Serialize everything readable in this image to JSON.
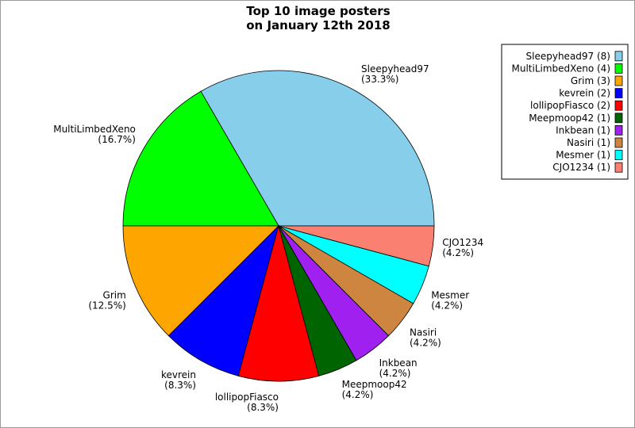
{
  "chart_data": {
    "type": "pie",
    "title_lines": [
      "Top 10 image posters",
      "on January 12th 2018"
    ],
    "start_angle_deg": 0,
    "direction": "counterclockwise",
    "legend_position": "top-right",
    "slices": [
      {
        "name": "Sleepyhead97",
        "count": 8,
        "percent": "33.3%",
        "legend": "Sleepyhead97 (8)",
        "color": "#87ceeb"
      },
      {
        "name": "MultiLimbedXeno",
        "count": 4,
        "percent": "16.7%",
        "legend": "MultiLimbedXeno (4)",
        "color": "#00ff00"
      },
      {
        "name": "Grim",
        "count": 3,
        "percent": "12.5%",
        "legend": "Grim (3)",
        "color": "#ffa500"
      },
      {
        "name": "kevrein",
        "count": 2,
        "percent": "8.3%",
        "legend": "kevrein (2)",
        "color": "#0000ff"
      },
      {
        "name": "lollipopFiasco",
        "count": 2,
        "percent": "8.3%",
        "legend": "lollipopFiasco (2)",
        "color": "#ff0000"
      },
      {
        "name": "Meepmoop42",
        "count": 1,
        "percent": "4.2%",
        "legend": "Meepmoop42 (1)",
        "color": "#006400"
      },
      {
        "name": "Inkbean",
        "count": 1,
        "percent": "4.2%",
        "legend": "Inkbean (1)",
        "color": "#a020f0"
      },
      {
        "name": "Nasiri",
        "count": 1,
        "percent": "4.2%",
        "legend": "Nasiri (1)",
        "color": "#cd853f"
      },
      {
        "name": "Mesmer",
        "count": 1,
        "percent": "4.2%",
        "legend": "Mesmer (1)",
        "color": "#00ffff"
      },
      {
        "name": "CJO1234",
        "count": 1,
        "percent": "4.2%",
        "legend": "CJO1234 (1)",
        "color": "#fa8072"
      }
    ]
  }
}
